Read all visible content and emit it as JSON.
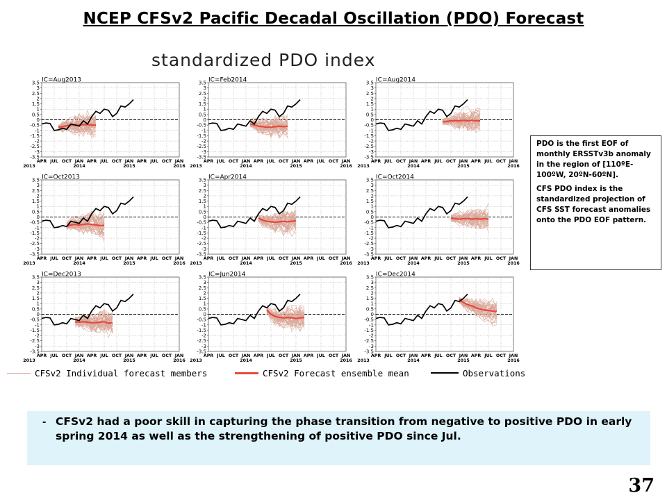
{
  "slide": {
    "title": "NCEP CFSv2 Pacific Decadal Oscillation (PDO) Forecast",
    "panel_title": "standardized PDO index",
    "page_number": "37"
  },
  "info_box": {
    "paragraph1": "PDO is the first EOF of monthly ERSSTv3b anomaly in the region of [110ºE-100ºW, 20ºN-60ºN].",
    "paragraph2": "CFS PDO index is the standardized projection of CFS SST forecast anomalies onto the PDO EOF pattern."
  },
  "note": {
    "bullet": "-",
    "text": "CFSv2 had a poor skill in capturing the phase transition from negative to positive PDO in early spring 2014 as well as the strengthening of positive PDO since Jul."
  },
  "legend": {
    "members_label": "CFSv2 Individual forecast members",
    "mean_label": "CFSv2 Forecast ensemble mean",
    "obs_label": "Observations"
  },
  "colors": {
    "members": "#d9a89a",
    "ensemble_mean": "#e8473c",
    "observations": "#000000",
    "note_background": "#dff3fa"
  },
  "chart_data": [
    {
      "type": "line",
      "title": "IC=Aug2013",
      "x_tick_labels": [
        "APR",
        "JUL",
        "OCT",
        "JAN",
        "APR",
        "JUL",
        "OCT",
        "JAN",
        "APR",
        "JUL",
        "OCT",
        "JAN"
      ],
      "year_labels": [
        "2013",
        "2014",
        "2015",
        "2016"
      ],
      "y_tick_labels": [
        "3.5",
        "3",
        "2.5",
        "2",
        "1.5",
        "1",
        "0.5",
        "0",
        "-0.5",
        "-1",
        "-1.5",
        "-2",
        "-2.5",
        "-3",
        "-3.5"
      ],
      "xlim": [
        "2013-04",
        "2016-01"
      ],
      "ylim": [
        -3.5,
        3.5
      ],
      "reference_line": 0,
      "observations": {
        "start": "2013-04",
        "values": [
          -0.4,
          -0.3,
          -0.35,
          -1.0,
          -0.95,
          -0.8,
          -0.9,
          -0.4,
          -0.5,
          -0.6,
          -0.1,
          -0.4,
          0.3,
          0.8,
          0.6,
          1.0,
          0.9,
          0.3,
          0.6,
          1.3,
          1.2,
          1.5,
          1.9
        ]
      },
      "ensemble_mean": {
        "start": "2013-08",
        "values": [
          -0.7,
          -0.65,
          -0.55,
          -0.5,
          -0.45,
          -0.5,
          -0.45,
          -0.45,
          -0.5,
          -0.5
        ]
      },
      "members": {
        "start": "2013-08",
        "count": 40,
        "spread": 1.5
      }
    },
    {
      "type": "line",
      "title": "IC=Feb2014",
      "x_tick_labels": [
        "APR",
        "JUL",
        "OCT",
        "JAN",
        "APR",
        "JUL",
        "OCT",
        "JAN",
        "APR",
        "JUL",
        "OCT",
        "JAN"
      ],
      "year_labels": [
        "2013",
        "2014",
        "2015",
        "2016"
      ],
      "y_tick_labels": [
        "3.5",
        "3",
        "2.5",
        "2",
        "1.5",
        "1",
        "0.5",
        "0",
        "-0.5",
        "-1",
        "-1.5",
        "-2",
        "-2.5",
        "-3",
        "-3.5"
      ],
      "xlim": [
        "2013-04",
        "2016-01"
      ],
      "ylim": [
        -3.5,
        3.5
      ],
      "reference_line": 0,
      "observations": {
        "start": "2013-04",
        "values": [
          -0.4,
          -0.3,
          -0.35,
          -1.0,
          -0.95,
          -0.8,
          -0.9,
          -0.4,
          -0.5,
          -0.6,
          -0.1,
          -0.4,
          0.3,
          0.8,
          0.6,
          1.0,
          0.9,
          0.3,
          0.6,
          1.3,
          1.2,
          1.5,
          1.9
        ]
      },
      "ensemble_mean": {
        "start": "2014-02",
        "values": [
          -0.4,
          -0.5,
          -0.6,
          -0.65,
          -0.7,
          -0.7,
          -0.65,
          -0.6,
          -0.65,
          -0.6
        ]
      },
      "members": {
        "start": "2014-02",
        "count": 40,
        "spread": 1.5
      }
    },
    {
      "type": "line",
      "title": "IC=Aug2014",
      "x_tick_labels": [
        "APR",
        "JUL",
        "OCT",
        "JAN",
        "APR",
        "JUL",
        "OCT",
        "JAN",
        "APR",
        "JUL",
        "OCT",
        "JAN"
      ],
      "year_labels": [
        "2013",
        "2014",
        "2015",
        "2016"
      ],
      "y_tick_labels": [
        "3.5",
        "3",
        "2.5",
        "2",
        "1.5",
        "1",
        "0.5",
        "0",
        "-0.5",
        "-1",
        "-1.5",
        "-2",
        "-2.5",
        "-3",
        "-3.5"
      ],
      "xlim": [
        "2013-04",
        "2016-01"
      ],
      "ylim": [
        -3.5,
        3.5
      ],
      "reference_line": 0,
      "observations": {
        "start": "2013-04",
        "values": [
          -0.4,
          -0.3,
          -0.35,
          -1.0,
          -0.95,
          -0.8,
          -0.9,
          -0.4,
          -0.5,
          -0.6,
          -0.1,
          -0.4,
          0.3,
          0.8,
          0.6,
          1.0,
          0.9,
          0.3,
          0.6,
          1.3,
          1.2,
          1.5,
          1.9
        ]
      },
      "ensemble_mean": {
        "start": "2014-08",
        "values": [
          -0.2,
          -0.15,
          -0.1,
          -0.1,
          -0.1,
          -0.05,
          -0.1,
          -0.05,
          -0.1,
          -0.1
        ]
      },
      "members": {
        "start": "2014-08",
        "count": 40,
        "spread": 1.5
      }
    },
    {
      "type": "line",
      "title": "IC=Oct2013",
      "x_tick_labels": [
        "APR",
        "JUL",
        "OCT",
        "JAN",
        "APR",
        "JUL",
        "OCT",
        "JAN",
        "APR",
        "JUL",
        "OCT",
        "JAN"
      ],
      "year_labels": [
        "2013",
        "2014",
        "2015",
        "2016"
      ],
      "y_tick_labels": [
        "3.5",
        "3",
        "2.5",
        "2",
        "1.5",
        "1",
        "0.5",
        "0",
        "-0.5",
        "-1",
        "-1.5",
        "-2",
        "-2.5",
        "-3",
        "-3.5"
      ],
      "xlim": [
        "2013-04",
        "2016-01"
      ],
      "ylim": [
        -3.5,
        3.5
      ],
      "reference_line": 0,
      "observations": {
        "start": "2013-04",
        "values": [
          -0.4,
          -0.3,
          -0.35,
          -1.0,
          -0.95,
          -0.8,
          -0.9,
          -0.4,
          -0.5,
          -0.6,
          -0.1,
          -0.4,
          0.3,
          0.8,
          0.6,
          1.0,
          0.9,
          0.3,
          0.6,
          1.3,
          1.2,
          1.5,
          1.9
        ]
      },
      "ensemble_mean": {
        "start": "2013-10",
        "values": [
          -0.85,
          -0.75,
          -0.7,
          -0.75,
          -0.7,
          -0.65,
          -0.7,
          -0.75,
          -0.8,
          -0.8
        ]
      },
      "members": {
        "start": "2013-10",
        "count": 40,
        "spread": 1.6
      }
    },
    {
      "type": "line",
      "title": "IC=Apr2014",
      "x_tick_labels": [
        "APR",
        "JUL",
        "OCT",
        "JAN",
        "APR",
        "JUL",
        "OCT",
        "JAN",
        "APR",
        "JUL",
        "OCT",
        "JAN"
      ],
      "year_labels": [
        "2013",
        "2014",
        "2015",
        "2016"
      ],
      "y_tick_labels": [
        "3.5",
        "3",
        "2.5",
        "2",
        "1.5",
        "1",
        "0.5",
        "0",
        "-0.5",
        "-1",
        "-1.5",
        "-2",
        "-2.5",
        "-3",
        "-3.5"
      ],
      "xlim": [
        "2013-04",
        "2016-01"
      ],
      "ylim": [
        -3.5,
        3.5
      ],
      "reference_line": 0,
      "observations": {
        "start": "2013-04",
        "values": [
          -0.4,
          -0.3,
          -0.35,
          -1.0,
          -0.95,
          -0.8,
          -0.9,
          -0.4,
          -0.5,
          -0.6,
          -0.1,
          -0.4,
          0.3,
          0.8,
          0.6,
          1.0,
          0.9,
          0.3,
          0.6,
          1.3,
          1.2,
          1.5,
          1.9
        ]
      },
      "ensemble_mean": {
        "start": "2014-04",
        "values": [
          -0.1,
          -0.3,
          -0.4,
          -0.45,
          -0.5,
          -0.45,
          -0.4,
          -0.45,
          -0.4,
          -0.35
        ]
      },
      "members": {
        "start": "2014-04",
        "count": 40,
        "spread": 1.6
      }
    },
    {
      "type": "line",
      "title": "IC=Oct2014",
      "x_tick_labels": [
        "APR",
        "JUL",
        "OCT",
        "JAN",
        "APR",
        "JUL",
        "OCT",
        "JAN",
        "APR",
        "JUL",
        "OCT",
        "JAN"
      ],
      "year_labels": [
        "2013",
        "2014",
        "2015",
        "2016"
      ],
      "y_tick_labels": [
        "3.5",
        "3",
        "2.5",
        "2",
        "1.5",
        "1",
        "0.5",
        "0",
        "-0.5",
        "-1",
        "-1.5",
        "-2",
        "-2.5",
        "-3",
        "-3.5"
      ],
      "xlim": [
        "2013-04",
        "2016-01"
      ],
      "ylim": [
        -3.5,
        3.5
      ],
      "reference_line": 0,
      "observations": {
        "start": "2013-04",
        "values": [
          -0.4,
          -0.3,
          -0.35,
          -1.0,
          -0.95,
          -0.8,
          -0.9,
          -0.4,
          -0.5,
          -0.6,
          -0.1,
          -0.4,
          0.3,
          0.8,
          0.6,
          1.0,
          0.9,
          0.3,
          0.6,
          1.3,
          1.2,
          1.5,
          1.9
        ]
      },
      "ensemble_mean": {
        "start": "2014-10",
        "values": [
          -0.1,
          -0.15,
          -0.2,
          -0.15,
          -0.15,
          -0.2,
          -0.15,
          -0.2,
          -0.15,
          -0.2
        ]
      },
      "members": {
        "start": "2014-10",
        "count": 40,
        "spread": 1.4
      }
    },
    {
      "type": "line",
      "title": "IC=Dec2013",
      "x_tick_labels": [
        "APR",
        "JUL",
        "OCT",
        "JAN",
        "APR",
        "JUL",
        "OCT",
        "JAN",
        "APR",
        "JUL",
        "OCT",
        "JAN"
      ],
      "year_labels": [
        "2013",
        "2014",
        "2015",
        "2016"
      ],
      "y_tick_labels": [
        "3.5",
        "3",
        "2.5",
        "2",
        "1.5",
        "1",
        "0.5",
        "0",
        "-0.5",
        "-1",
        "-1.5",
        "-2",
        "-2.5",
        "-3",
        "-3.5"
      ],
      "xlim": [
        "2013-04",
        "2016-01"
      ],
      "ylim": [
        -3.5,
        3.5
      ],
      "reference_line": 0,
      "observations": {
        "start": "2013-04",
        "values": [
          -0.4,
          -0.3,
          -0.35,
          -1.0,
          -0.95,
          -0.8,
          -0.9,
          -0.4,
          -0.5,
          -0.6,
          -0.1,
          -0.4,
          0.3,
          0.8,
          0.6,
          1.0,
          0.9,
          0.3,
          0.6,
          1.3,
          1.2,
          1.5,
          1.9
        ]
      },
      "ensemble_mean": {
        "start": "2013-12",
        "values": [
          -0.7,
          -0.75,
          -0.7,
          -0.75,
          -0.8,
          -0.8,
          -0.75,
          -0.7,
          -0.85,
          -0.8
        ]
      },
      "members": {
        "start": "2013-12",
        "count": 40,
        "spread": 1.7
      }
    },
    {
      "type": "line",
      "title": "IC=Jun2014",
      "x_tick_labels": [
        "APR",
        "JUL",
        "OCT",
        "JAN",
        "APR",
        "JUL",
        "OCT",
        "JAN",
        "APR",
        "JUL",
        "OCT",
        "JAN"
      ],
      "year_labels": [
        "2013",
        "2014",
        "2015",
        "2016"
      ],
      "y_tick_labels": [
        "3.5",
        "3",
        "2.5",
        "2",
        "1.5",
        "1",
        "0.5",
        "0",
        "-0.5",
        "-1",
        "-1.5",
        "-2",
        "-2.5",
        "-3",
        "-3.5"
      ],
      "xlim": [
        "2013-04",
        "2016-01"
      ],
      "ylim": [
        -3.5,
        3.5
      ],
      "reference_line": 0,
      "observations": {
        "start": "2013-04",
        "values": [
          -0.4,
          -0.3,
          -0.35,
          -1.0,
          -0.95,
          -0.8,
          -0.9,
          -0.4,
          -0.5,
          -0.6,
          -0.1,
          -0.4,
          0.3,
          0.8,
          0.6,
          1.0,
          0.9,
          0.3,
          0.6,
          1.3,
          1.2,
          1.5,
          1.9
        ]
      },
      "ensemble_mean": {
        "start": "2014-06",
        "values": [
          0.4,
          0.0,
          -0.2,
          -0.3,
          -0.35,
          -0.3,
          -0.35,
          -0.4,
          -0.35,
          -0.3
        ]
      },
      "members": {
        "start": "2014-06",
        "count": 40,
        "spread": 1.6
      }
    },
    {
      "type": "line",
      "title": "IC=Dec2014",
      "x_tick_labels": [
        "APR",
        "JUL",
        "OCT",
        "JAN",
        "APR",
        "JUL",
        "OCT",
        "JAN",
        "APR",
        "JUL",
        "OCT",
        "JAN"
      ],
      "year_labels": [
        "2013",
        "2014",
        "2015",
        "2016"
      ],
      "y_tick_labels": [
        "3.5",
        "3",
        "2.5",
        "2",
        "1.5",
        "1",
        "0.5",
        "0",
        "-0.5",
        "-1",
        "-1.5",
        "-2",
        "-2.5",
        "-3",
        "-3.5"
      ],
      "xlim": [
        "2013-04",
        "2016-01"
      ],
      "ylim": [
        -3.5,
        3.5
      ],
      "reference_line": 0,
      "observations": {
        "start": "2013-04",
        "values": [
          -0.4,
          -0.3,
          -0.35,
          -1.0,
          -0.95,
          -0.8,
          -0.9,
          -0.4,
          -0.5,
          -0.6,
          -0.1,
          -0.4,
          0.3,
          0.8,
          0.6,
          1.0,
          0.9,
          0.3,
          0.6,
          1.3,
          1.2,
          1.5,
          1.9
        ]
      },
      "ensemble_mean": {
        "start": "2014-12",
        "values": [
          1.4,
          1.1,
          0.9,
          0.8,
          0.6,
          0.5,
          0.4,
          0.35,
          0.3,
          0.25
        ]
      },
      "members": {
        "start": "2014-12",
        "count": 40,
        "spread": 1.3
      }
    }
  ]
}
